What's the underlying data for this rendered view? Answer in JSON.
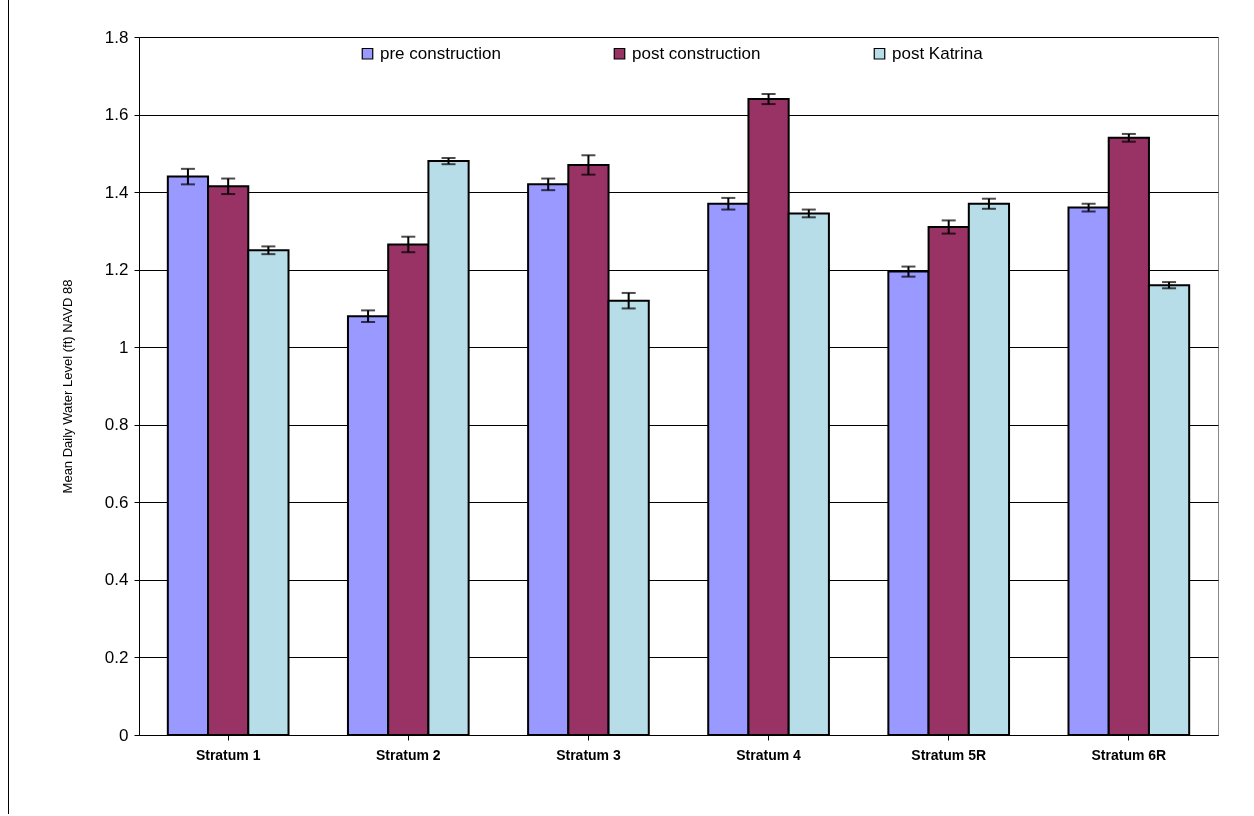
{
  "chart_data": {
    "type": "bar",
    "ylabel": "Mean Daily Water Level (ft) NAVD 88",
    "categories": [
      "Stratum 1",
      "Stratum 2",
      "Stratum 3",
      "Stratum 4",
      "Stratum 5R",
      "Stratum 6R"
    ],
    "series": [
      {
        "name": "pre construction",
        "color": "#9999ff",
        "values": [
          1.44,
          1.08,
          1.42,
          1.37,
          1.195,
          1.36
        ],
        "errors": [
          0.02,
          0.015,
          0.015,
          0.015,
          0.013,
          0.01
        ]
      },
      {
        "name": "post construction",
        "color": "#993366",
        "values": [
          1.415,
          1.265,
          1.47,
          1.64,
          1.31,
          1.54
        ],
        "errors": [
          0.02,
          0.02,
          0.025,
          0.013,
          0.017,
          0.01
        ]
      },
      {
        "name": "post Katrina",
        "color": "#b7dee8",
        "values": [
          1.25,
          1.48,
          1.12,
          1.345,
          1.37,
          1.16
        ],
        "errors": [
          0.01,
          0.008,
          0.02,
          0.01,
          0.013,
          0.008
        ]
      }
    ],
    "ylim": [
      0,
      1.8
    ],
    "yticks": [
      0,
      0.2,
      0.4,
      0.6,
      0.8,
      1,
      1.2,
      1.4,
      1.6,
      1.8
    ],
    "grid": "y",
    "legend": "top"
  }
}
